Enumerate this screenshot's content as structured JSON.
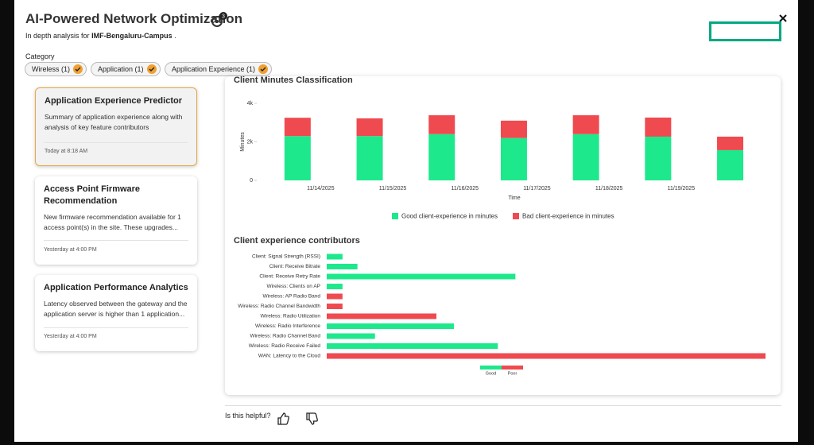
{
  "header": {
    "title": "AI-Powered Network Optimization",
    "badge": "3",
    "subtitle_prefix": "In depth analysis for",
    "site": "IMF-Bengaluru-Campus",
    "subtitle_suffix": "."
  },
  "category": {
    "label": "Category",
    "chips": [
      "Wireless (1)",
      "Application (1)",
      "Application Experience (1)"
    ]
  },
  "cards": [
    {
      "title": "Application Experience Predictor",
      "description": "Summary of application experience along with analysis of key feature contributors",
      "time": "Today at 8:18 AM"
    },
    {
      "title": "Access Point Firmware Recommendation",
      "description": "New firmware recommendation available for 1 access point(s) in the site. These upgrades...",
      "time": "Yesterday at 4:00 PM"
    },
    {
      "title": "Application Performance Analytics",
      "description": "Latency observed between the gateway and the application server is higher than 1 application...",
      "time": "Yesterday at 4:00 PM"
    }
  ],
  "chart_data": [
    {
      "type": "stacked_bar",
      "title": "Client Minutes Classification",
      "x_label": "Time",
      "y_label": "Minutes",
      "categories": [
        "11/14/2025",
        "11/15/2025",
        "11/16/2025",
        "11/17/2025",
        "11/18/2025",
        "11/19/2025",
        null
      ],
      "series": [
        {
          "name": "Good client-experience in minutes",
          "color": "#1ee88c",
          "values": [
            2300,
            2300,
            2400,
            2200,
            2400,
            2270,
            1570
          ]
        },
        {
          "name": "Bad client-experience in minutes",
          "color": "#ef4a50",
          "values": [
            950,
            920,
            980,
            900,
            980,
            990,
            700
          ]
        }
      ],
      "ylim": [
        0,
        4000
      ],
      "yticks": [
        0,
        {
          "value": 2000,
          "label": "2k"
        },
        {
          "value": 4000,
          "label": "4k"
        }
      ],
      "legend": "bottom"
    },
    {
      "type": "horizontal_bar",
      "title": "Client experience contributors",
      "categories": [
        "Client: Signal Strength (RSSI)",
        "Client: Receive Bitrate",
        "Client: Receive Retry Rate",
        "Wireless: Clients on AP",
        "Wireless: AP Radio Band",
        "Wireless: Radio Channel Bandwidth",
        "Wireless: Radio Utilization",
        "Wireless: Radio Interference",
        "Wireless: Radio Channel Band",
        "Wireless: Radio Receive Failed",
        "WAN: Latency to the Cloud"
      ],
      "values": [
        3.6,
        7,
        43,
        3.6,
        3.6,
        3.6,
        25,
        29,
        11,
        39,
        100
      ],
      "colors": [
        "#1ee88c",
        "#1ee88c",
        "#1ee88c",
        "#1ee88c",
        "#ef4a50",
        "#ef4a50",
        "#ef4a50",
        "#1ee88c",
        "#1ee88c",
        "#1ee88c",
        "#ef4a50"
      ],
      "xlim": [
        0,
        100
      ],
      "legend": [
        {
          "name": "Good",
          "color": "#1ee88c"
        },
        {
          "name": "Poor",
          "color": "#ef4a50"
        }
      ]
    }
  ],
  "feedback": {
    "prompt": "Is this helpful?"
  }
}
